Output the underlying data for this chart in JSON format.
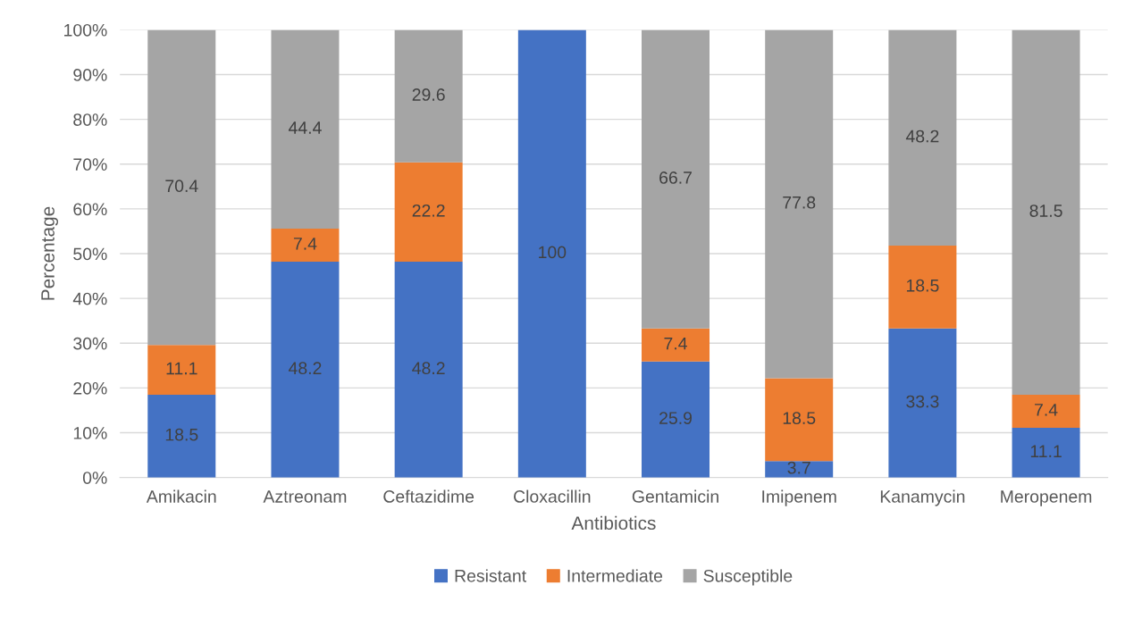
{
  "chart_data": {
    "type": "bar",
    "stacked": true,
    "xlabel": "Antibiotics",
    "ylabel": "Percentage",
    "categories": [
      "Amikacin",
      "Aztreonam",
      "Ceftazidime",
      "Cloxacillin",
      "Gentamicin",
      "Imipenem",
      "Kanamycin",
      "Meropenem"
    ],
    "series": [
      {
        "name": "Resistant",
        "color": "#4472c4",
        "values": [
          18.5,
          48.2,
          48.2,
          100,
          25.9,
          3.7,
          33.3,
          11.1
        ],
        "value_labels": [
          "18.5",
          "48.2",
          "48.2",
          "100",
          "25.9",
          "3.7",
          "33.3",
          "11.1"
        ]
      },
      {
        "name": "Intermediate",
        "color": "#ed7d31",
        "values": [
          11.1,
          7.4,
          22.2,
          0,
          7.4,
          18.5,
          18.5,
          7.4
        ],
        "value_labels": [
          "11.1",
          "7.4",
          "22.2",
          null,
          "7.4",
          "18.5",
          "18.5",
          "7.4"
        ]
      },
      {
        "name": "Susceptible",
        "color": "#a5a5a5",
        "values": [
          70.4,
          44.4,
          29.6,
          0,
          66.7,
          77.8,
          48.2,
          81.5
        ],
        "value_labels": [
          "70.4",
          "44.4",
          "29.6",
          null,
          "66.7",
          "77.8",
          "48.2",
          "81.5"
        ]
      }
    ],
    "ylim": [
      0,
      100
    ],
    "yticks": [
      {
        "value": 0,
        "label": "0%"
      },
      {
        "value": 10,
        "label": "10%"
      },
      {
        "value": 20,
        "label": "20%"
      },
      {
        "value": 30,
        "label": "30%"
      },
      {
        "value": 40,
        "label": "40%"
      },
      {
        "value": 50,
        "label": "50%"
      },
      {
        "value": 60,
        "label": "60%"
      },
      {
        "value": 70,
        "label": "70%"
      },
      {
        "value": 80,
        "label": "80%"
      },
      {
        "value": 90,
        "label": "90%"
      },
      {
        "value": 100,
        "label": "100%"
      }
    ],
    "grid": "y",
    "legend": "bottom"
  }
}
